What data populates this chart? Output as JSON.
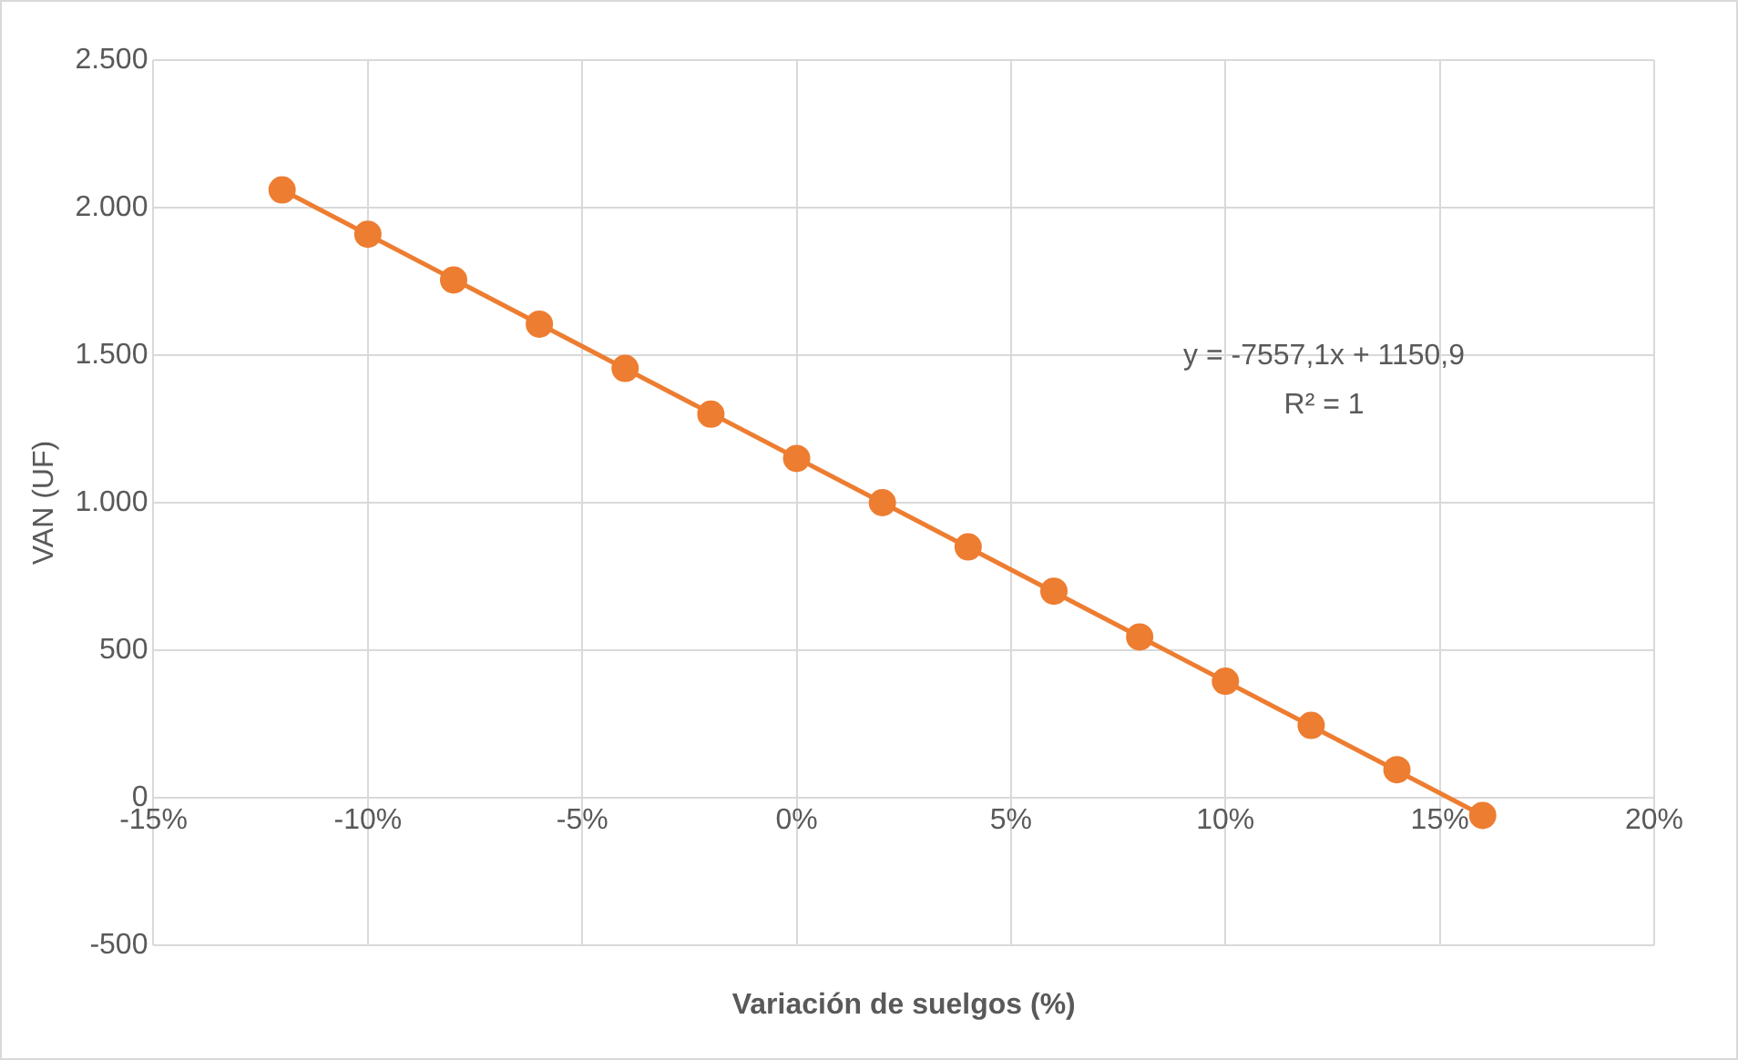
{
  "chart_data": {
    "type": "scatter",
    "xlabel": "Variación de suelgos (%)",
    "ylabel": "VAN (UF)",
    "series": [
      {
        "color": "#ed7d31",
        "x": [
          -12,
          -10,
          -8,
          -6,
          -4,
          -2,
          0,
          2,
          4,
          6,
          8,
          10,
          12,
          14,
          16
        ],
        "values": [
          2060,
          1910,
          1755,
          1605,
          1455,
          1300,
          1150,
          1000,
          850,
          700,
          545,
          395,
          245,
          95,
          -60
        ],
        "marker": "circle"
      },
      {
        "type": "line",
        "color": "#ed7d31",
        "x": [
          -12,
          16
        ],
        "values": [
          2060,
          -60
        ],
        "marker": "none",
        "line_style": "solid"
      }
    ],
    "xlim": [
      -15,
      20
    ],
    "xticks": [
      {
        "value": -15,
        "label": "-15%"
      },
      {
        "value": -10,
        "label": "-10%"
      },
      {
        "value": -5,
        "label": "-5%"
      },
      {
        "value": 0,
        "label": "0%"
      },
      {
        "value": 5,
        "label": "5%"
      },
      {
        "value": 10,
        "label": "10%"
      },
      {
        "value": 15,
        "label": "15%"
      },
      {
        "value": 20,
        "label": "20%"
      }
    ],
    "ylim": [
      -500,
      2500
    ],
    "yticks": [
      {
        "value": -500,
        "label": "-500"
      },
      0,
      500,
      {
        "value": 1000,
        "label": "1.000"
      },
      {
        "value": 1500,
        "label": "1.500"
      },
      {
        "value": 2000,
        "label": "2.000"
      },
      {
        "value": 2500,
        "label": "2.500"
      }
    ],
    "annotations": [
      "y = -7557,1x + 1150,9",
      "R² = 1"
    ],
    "grid": true,
    "legend": false
  }
}
